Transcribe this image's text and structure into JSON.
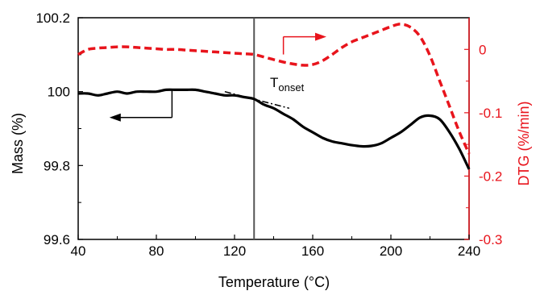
{
  "chart_data": {
    "type": "line",
    "title": "",
    "xlabel": "Temperature (°C)",
    "ylabel_left": "Mass (%)",
    "ylabel_right": "DTG (%/min)",
    "xlim": [
      40,
      240
    ],
    "ylim_left": [
      99.6,
      100.2
    ],
    "ylim_right": [
      -0.3,
      0.05
    ],
    "xticks": [
      "40",
      "80",
      "120",
      "160",
      "200",
      "240"
    ],
    "yticks_left": [
      "99.6",
      "99.8",
      "100",
      "100.2"
    ],
    "yticks_right": [
      "0",
      "-0.1",
      "-0.2",
      "-0.3"
    ],
    "grid": false,
    "colors": {
      "mass": "#000000",
      "dtg": "#e8141c",
      "marker_line": "#555555"
    },
    "onset_marker_x": 130,
    "annotation": {
      "main": "T",
      "sub": "onset"
    },
    "series": [
      {
        "axis": "left",
        "style": "solid",
        "x": [
          40,
          45,
          50,
          55,
          60,
          65,
          70,
          75,
          80,
          85,
          90,
          95,
          100,
          105,
          110,
          115,
          120,
          125,
          130,
          135,
          140,
          145,
          150,
          155,
          160,
          165,
          170,
          175,
          180,
          185,
          190,
          195,
          200,
          205,
          210,
          215,
          220,
          225,
          230,
          235,
          240
        ],
        "y": [
          99.995,
          99.995,
          99.99,
          99.995,
          100.0,
          99.995,
          100.0,
          100.0,
          100.0,
          100.005,
          100.005,
          100.005,
          100.005,
          100.0,
          99.995,
          99.99,
          99.99,
          99.985,
          99.98,
          99.965,
          99.955,
          99.94,
          99.925,
          99.905,
          99.89,
          99.875,
          99.865,
          99.86,
          99.855,
          99.852,
          99.853,
          99.86,
          99.875,
          99.89,
          99.91,
          99.93,
          99.935,
          99.925,
          99.89,
          99.845,
          99.79
        ]
      },
      {
        "axis": "right",
        "style": "dashed",
        "x": [
          40,
          45,
          50,
          55,
          60,
          65,
          70,
          75,
          80,
          85,
          90,
          95,
          100,
          105,
          110,
          115,
          120,
          125,
          130,
          135,
          140,
          145,
          150,
          155,
          160,
          165,
          170,
          175,
          180,
          185,
          190,
          195,
          200,
          205,
          210,
          215,
          220,
          225,
          230,
          235,
          240
        ],
        "y": [
          -0.008,
          0.0,
          0.002,
          0.003,
          0.004,
          0.004,
          0.003,
          0.002,
          0.001,
          0.0,
          0.0,
          -0.001,
          -0.002,
          -0.003,
          -0.004,
          -0.005,
          -0.006,
          -0.007,
          -0.008,
          -0.012,
          -0.016,
          -0.02,
          -0.023,
          -0.025,
          -0.024,
          -0.018,
          -0.008,
          0.003,
          0.012,
          0.018,
          0.024,
          0.03,
          0.036,
          0.04,
          0.035,
          0.02,
          -0.01,
          -0.05,
          -0.09,
          -0.13,
          -0.165
        ]
      }
    ],
    "tangent_line": {
      "style": "dashdot",
      "x": [
        115,
        148
      ],
      "y": [
        100.0,
        99.955
      ]
    },
    "arrows": [
      {
        "axis": "left",
        "direction": "left"
      },
      {
        "axis": "right",
        "direction": "right"
      }
    ]
  }
}
